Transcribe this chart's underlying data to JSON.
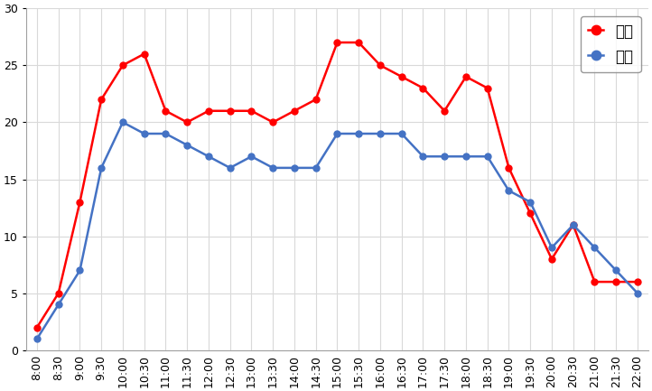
{
  "times": [
    "8:00",
    "8:30",
    "9:00",
    "9:30",
    "10:00",
    "10:30",
    "11:00",
    "11:30",
    "12:00",
    "12:30",
    "13:00",
    "13:30",
    "14:00",
    "14:30",
    "15:00",
    "15:30",
    "16:00",
    "16:30",
    "17:00",
    "17:30",
    "18:00",
    "18:30",
    "19:00",
    "19:30",
    "20:00",
    "20:30",
    "21:00",
    "21:30",
    "22:00"
  ],
  "kyujitsu": [
    2,
    5,
    13,
    22,
    25,
    26,
    21,
    20,
    21,
    21,
    21,
    20,
    21,
    22,
    27,
    27,
    25,
    24,
    23,
    21,
    24,
    23,
    16,
    12,
    8,
    11,
    6,
    6,
    6
  ],
  "heijitsu": [
    1,
    4,
    7,
    16,
    20,
    19,
    19,
    18,
    17,
    16,
    17,
    16,
    16,
    16,
    19,
    19,
    19,
    19,
    17,
    17,
    17,
    17,
    14,
    13,
    9,
    11,
    9,
    7,
    5
  ],
  "kyujitsu_color": "#ff0000",
  "heijitsu_color": "#4472c4",
  "marker": "o",
  "marker_size": 5,
  "line_width": 1.8,
  "legend_kyujitsu": "休日",
  "legend_heijitsu": "平日",
  "ylim": [
    0,
    30
  ],
  "yticks": [
    0,
    5,
    10,
    15,
    20,
    25,
    30
  ],
  "background_color": "#ffffff",
  "grid_color": "#d9d9d9",
  "tick_fontsize": 9,
  "legend_fontsize": 12
}
